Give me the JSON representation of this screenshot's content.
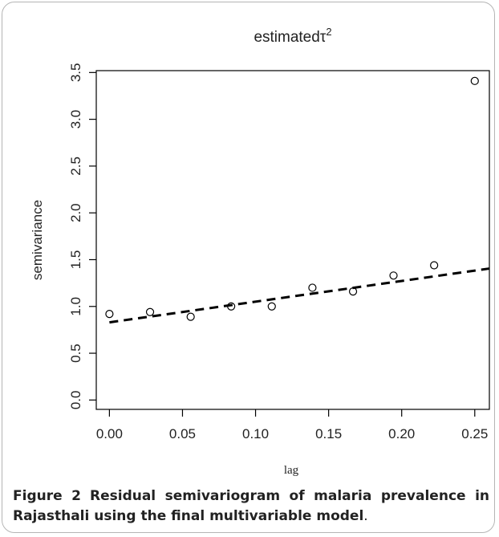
{
  "chart_data": {
    "type": "scatter",
    "title": "estimated",
    "title_symbol": "τ",
    "title_superscript": "2",
    "xlabel": "lag",
    "ylabel": "semivariance",
    "xlim": [
      -0.009,
      0.26
    ],
    "ylim": [
      -0.1,
      3.52
    ],
    "x_ticks": [
      "0.00",
      "0.05",
      "0.10",
      "0.15",
      "0.20",
      "0.25"
    ],
    "y_ticks": [
      "0.0",
      "0.5",
      "1.0",
      "1.5",
      "2.0",
      "2.5",
      "3.0",
      "3.5"
    ],
    "grid": false,
    "points": {
      "x": [
        0.0,
        0.0278,
        0.0556,
        0.0833,
        0.1111,
        0.1389,
        0.1667,
        0.1944,
        0.2222,
        0.25
      ],
      "y": [
        0.92,
        0.94,
        0.89,
        1.0,
        1.0,
        1.2,
        1.16,
        1.33,
        1.44,
        3.41
      ]
    },
    "fit_line": {
      "style": "dashed",
      "x": [
        0.0,
        0.26
      ],
      "y": [
        0.83,
        1.405
      ]
    }
  },
  "caption": {
    "figure_label": "Figure 2",
    "text": "Residual semivariogram of malaria prevalence in Rajasthali using the final multivariable model",
    "end": "."
  }
}
